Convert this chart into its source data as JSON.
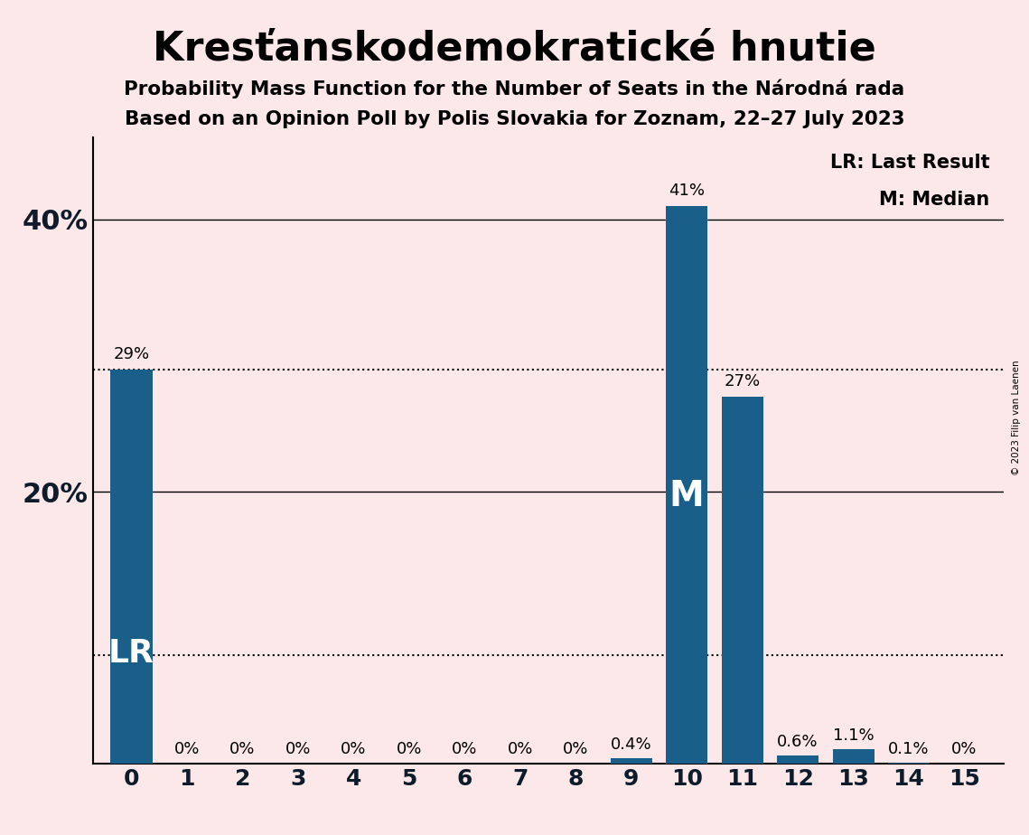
{
  "title": "Kresťanskodemokratické hnutie",
  "subtitle1": "Probability Mass Function for the Number of Seats in the Národná rada",
  "subtitle2": "Based on an Opinion Poll by Polis Slovakia for Zoznam, 22–27 July 2023",
  "copyright": "© 2023 Filip van Laenen",
  "categories": [
    0,
    1,
    2,
    3,
    4,
    5,
    6,
    7,
    8,
    9,
    10,
    11,
    12,
    13,
    14,
    15
  ],
  "values": [
    29,
    0,
    0,
    0,
    0,
    0,
    0,
    0,
    0,
    0.4,
    41,
    27,
    0.6,
    1.1,
    0.1,
    0
  ],
  "labels": [
    "29%",
    "0%",
    "0%",
    "0%",
    "0%",
    "0%",
    "0%",
    "0%",
    "0%",
    "0.4%",
    "41%",
    "27%",
    "0.6%",
    "1.1%",
    "0.1%",
    "0%"
  ],
  "bar_color": "#1a5f8a",
  "background_color": "#fce8e8",
  "lr_index": 0,
  "median_index": 10,
  "dotted_line_1": 29,
  "dotted_line_2": 8,
  "legend_lr": "LR: Last Result",
  "legend_m": "M: Median",
  "ytick_values": [
    20,
    40
  ],
  "ylabel_ticks": [
    "20%",
    "40%"
  ],
  "ylim": [
    0,
    46
  ],
  "xlim": [
    -0.7,
    15.7
  ]
}
